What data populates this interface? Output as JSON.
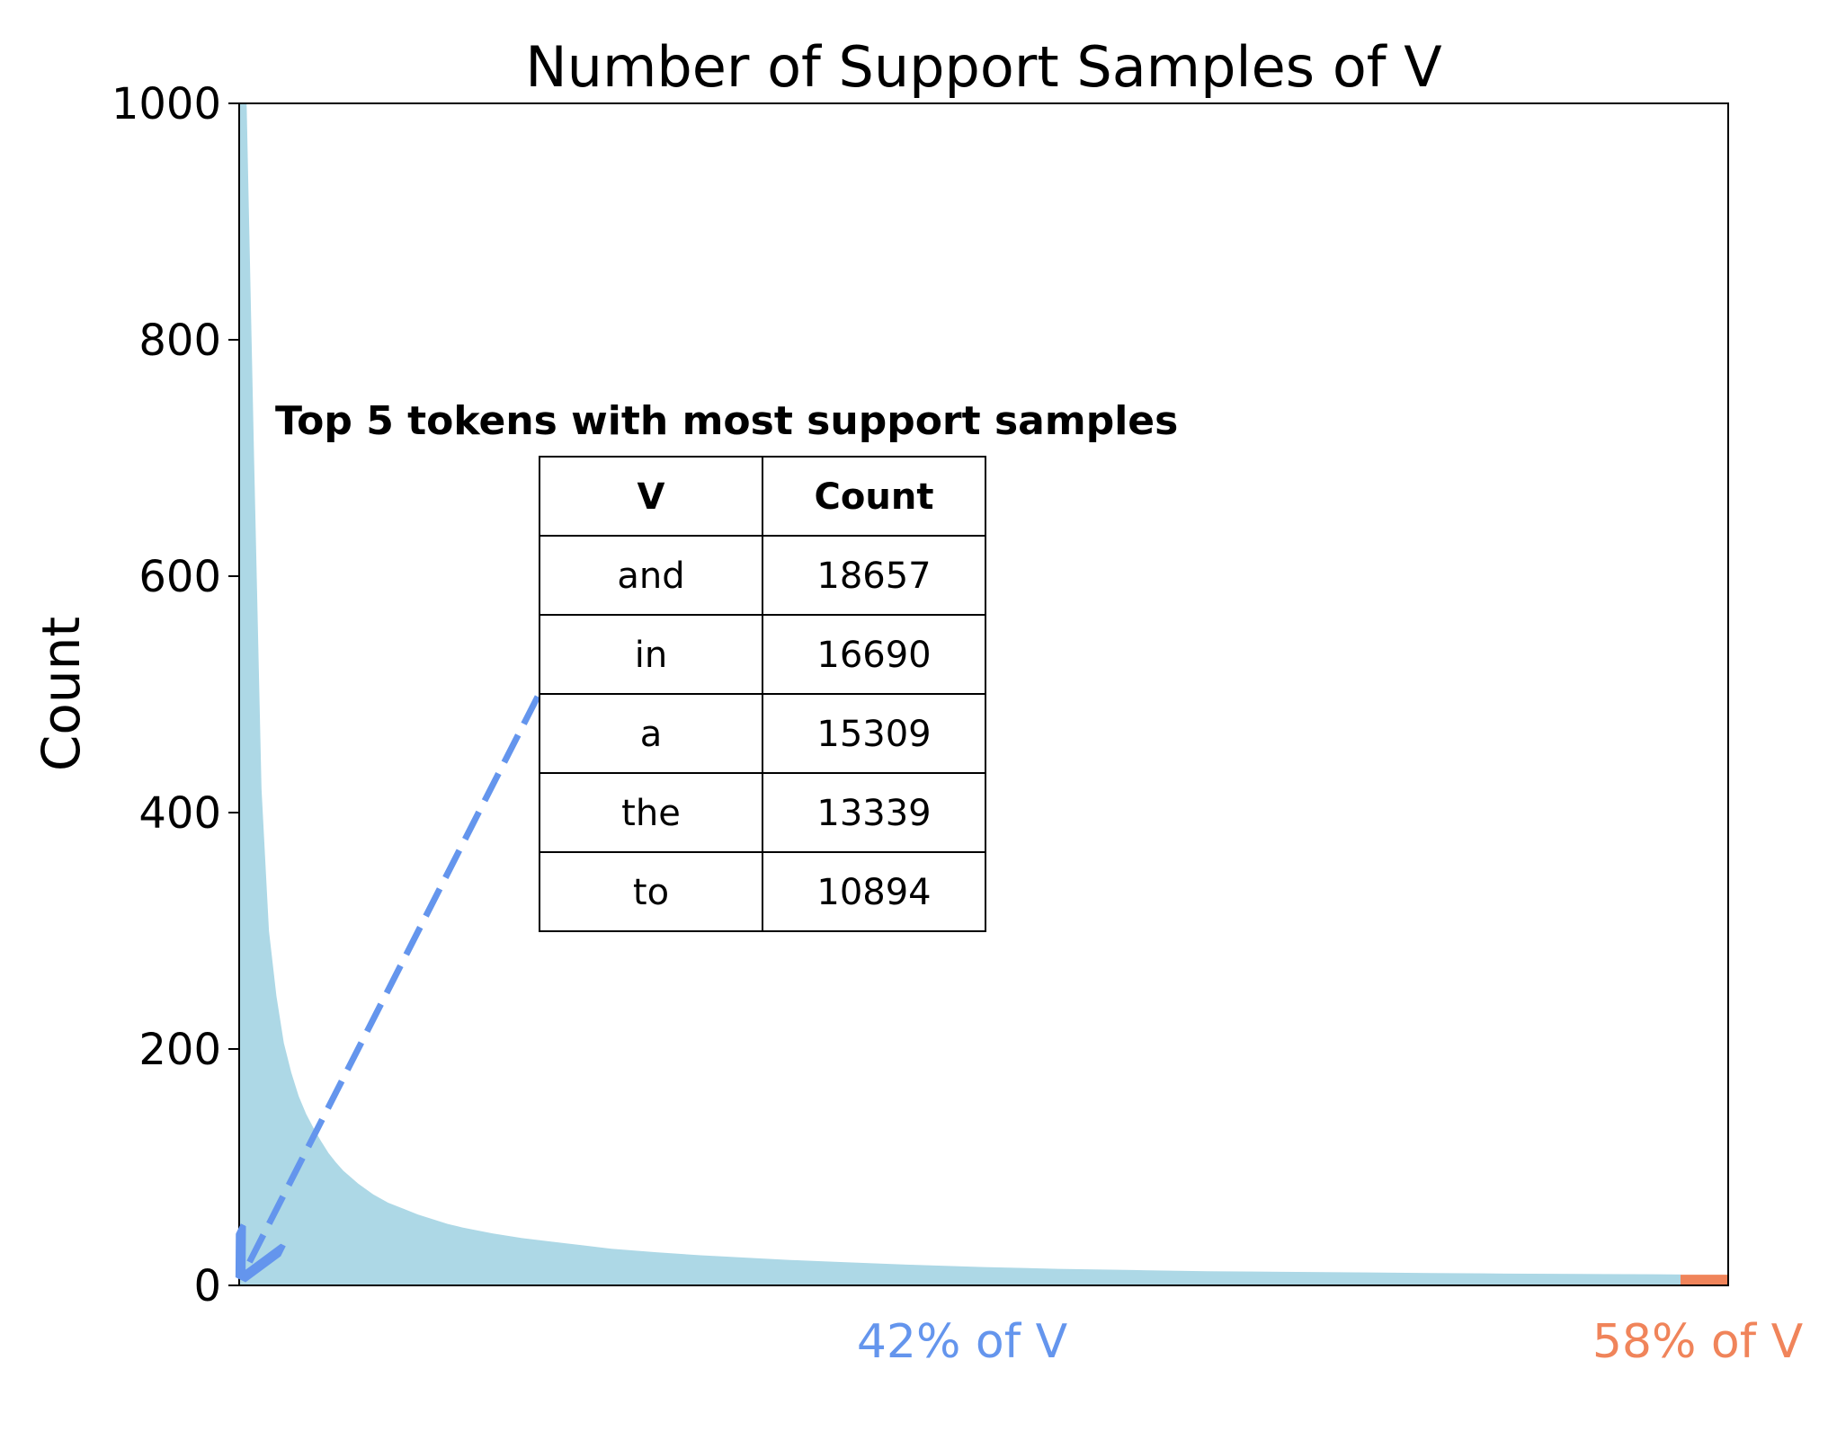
{
  "chart_data": {
    "type": "area",
    "title": "Number of Support Samples of V",
    "xlabel": "",
    "ylabel": "Count",
    "ylim": [
      0,
      1000
    ],
    "yticks": [
      "0",
      "200",
      "400",
      "600",
      "800",
      "1000"
    ],
    "grid": false,
    "x_range": [
      0,
      1
    ],
    "series": [
      {
        "name": "",
        "color": "#add8e6",
        "x": [
          0,
          0.005,
          0.01,
          0.015,
          0.02,
          0.025,
          0.03,
          0.035,
          0.04,
          0.045,
          0.05,
          0.055,
          0.06,
          0.065,
          0.07,
          0.08,
          0.09,
          0.1,
          0.11,
          0.12,
          0.13,
          0.14,
          0.15,
          0.17,
          0.19,
          0.21,
          0.23,
          0.25,
          0.28,
          0.31,
          0.34,
          0.37,
          0.4,
          0.45,
          0.5,
          0.55,
          0.6,
          0.65,
          0.7,
          0.75,
          0.8,
          0.85,
          0.9,
          0.95,
          0.968
        ],
        "values": [
          1000,
          1000,
          700,
          420,
          300,
          245,
          205,
          180,
          160,
          145,
          133,
          122,
          112,
          104,
          97,
          86,
          77,
          70,
          65,
          60,
          56,
          52,
          49,
          44,
          40,
          37,
          34,
          31,
          28,
          25.5,
          23.5,
          21.5,
          20,
          17.5,
          15.5,
          14,
          13,
          12,
          11.5,
          11,
          10.5,
          10,
          9.7,
          9.4,
          9.2
        ]
      },
      {
        "name": "",
        "color": "#f0845a",
        "x": [
          0.968,
          1.0
        ],
        "values": [
          9,
          9
        ]
      }
    ],
    "x_annotations": [
      {
        "text": "42% of V",
        "color": "#6495ed"
      },
      {
        "text": "58% of V",
        "color": "#f0845a"
      }
    ],
    "inset_table": {
      "title": "Top 5 tokens with most support samples",
      "columns": [
        "V",
        "Count"
      ],
      "rows": [
        [
          "and",
          "18657"
        ],
        [
          "in",
          "16690"
        ],
        [
          "a",
          "15309"
        ],
        [
          "the",
          "13339"
        ],
        [
          "to",
          "10894"
        ]
      ]
    },
    "arrow_color": "#6495ed"
  }
}
